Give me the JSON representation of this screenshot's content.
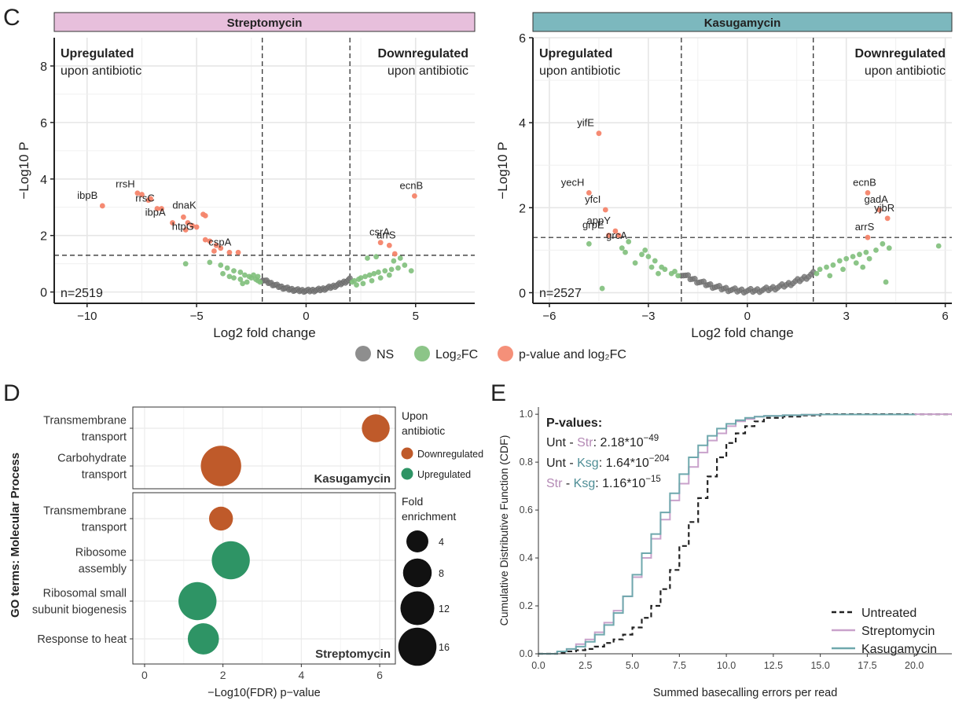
{
  "panel_labels": {
    "c": "C",
    "d": "D",
    "e": "E"
  },
  "colors": {
    "ns": "#7a7a7a",
    "log2fc": "#7fbf7b",
    "sig": "#f4846a",
    "downregulated": "#bf5a2a",
    "upregulated": "#2e9465",
    "streptomycin": "#c9a2cb",
    "kasugamycin": "#6fa8ad",
    "untreated": "#222222",
    "strep_strip": "#e7bfdc",
    "kasu_strip": "#7cb8be"
  },
  "chart_data": [
    {
      "type": "scatter",
      "panel": "C-left",
      "title": "Streptomycin",
      "xlabel": "Log2 fold change",
      "ylabel": "−Log10 P",
      "xlim": [
        -11.5,
        7.7
      ],
      "ylim": [
        -0.4,
        9
      ],
      "xticks": [
        -10,
        -5,
        0,
        5
      ],
      "yticks": [
        0,
        2,
        4,
        6,
        8
      ],
      "vlines": [
        -2,
        2
      ],
      "hline": 1.3,
      "grid": true,
      "annotations": {
        "up_title": "Upregulated",
        "up_sub": "upon antibiotic",
        "down_title": "Downregulated",
        "down_sub": "upon antibiotic",
        "n": "n=2519"
      },
      "labeled_points": [
        {
          "label": "rrsH",
          "x": -7.6,
          "y": 3.45
        },
        {
          "label": "ibpB",
          "x": -9.3,
          "y": 3.05
        },
        {
          "label": "rrsC",
          "x": -6.7,
          "y": 2.95
        },
        {
          "label": "dnaK",
          "x": -4.8,
          "y": 2.7
        },
        {
          "label": "ibpA",
          "x": -6.2,
          "y": 2.45
        },
        {
          "label": "htpG",
          "x": -4.9,
          "y": 1.95
        },
        {
          "label": "cspA",
          "x": -3.2,
          "y": 1.4
        },
        {
          "label": "ecnB",
          "x": 4.95,
          "y": 3.4
        },
        {
          "label": "csrA",
          "x": 3.5,
          "y": 1.75
        },
        {
          "label": "arrS",
          "x": 3.8,
          "y": 1.65
        }
      ],
      "sig_points": [
        [
          -7.7,
          3.5
        ],
        [
          -7.5,
          3.45
        ],
        [
          -7.2,
          3.25
        ],
        [
          -7.1,
          3.3
        ],
        [
          -6.8,
          2.95
        ],
        [
          -6.6,
          2.95
        ],
        [
          -5.6,
          2.65
        ],
        [
          -5.4,
          2.45
        ],
        [
          -5.2,
          2.35
        ],
        [
          -5.0,
          2.3
        ],
        [
          -4.7,
          2.75
        ],
        [
          -4.6,
          2.7
        ],
        [
          -5.5,
          2.2
        ],
        [
          -4.6,
          1.85
        ],
        [
          -4.4,
          1.8
        ],
        [
          -4.1,
          1.65
        ],
        [
          -3.9,
          1.55
        ],
        [
          -4.2,
          1.45
        ],
        [
          -3.5,
          1.4
        ],
        [
          -3.1,
          1.4
        ],
        [
          -6.1,
          2.45
        ],
        [
          -9.3,
          3.05
        ],
        [
          3.4,
          1.75
        ],
        [
          3.8,
          1.65
        ],
        [
          4.05,
          1.35
        ],
        [
          4.95,
          3.4
        ]
      ],
      "fc_points": [
        [
          -5.5,
          1.0
        ],
        [
          -4.4,
          1.05
        ],
        [
          -3.9,
          0.95
        ],
        [
          -3.6,
          0.85
        ],
        [
          -3.3,
          0.75
        ],
        [
          -3.0,
          0.7
        ],
        [
          -2.8,
          0.6
        ],
        [
          -2.6,
          0.55
        ],
        [
          -2.5,
          0.5
        ],
        [
          -2.3,
          0.45
        ],
        [
          -2.2,
          0.4
        ],
        [
          -2.1,
          0.35
        ],
        [
          -3.3,
          0.5
        ],
        [
          -3.0,
          0.45
        ],
        [
          -2.7,
          0.35
        ],
        [
          -3.5,
          0.55
        ],
        [
          -2.4,
          0.6
        ],
        [
          -2.9,
          0.3
        ],
        [
          -3.8,
          0.65
        ],
        [
          -2.2,
          0.55
        ],
        [
          2.1,
          0.35
        ],
        [
          2.2,
          0.4
        ],
        [
          2.4,
          0.45
        ],
        [
          2.5,
          0.5
        ],
        [
          2.7,
          0.55
        ],
        [
          2.9,
          0.6
        ],
        [
          3.1,
          0.65
        ],
        [
          3.3,
          0.7
        ],
        [
          3.6,
          0.75
        ],
        [
          3.9,
          0.8
        ],
        [
          4.2,
          0.85
        ],
        [
          4.5,
          0.95
        ],
        [
          2.6,
          0.3
        ],
        [
          3.0,
          0.4
        ],
        [
          3.4,
          0.5
        ],
        [
          3.8,
          0.6
        ],
        [
          4.0,
          1.1
        ],
        [
          4.3,
          1.2
        ],
        [
          3.2,
          1.25
        ],
        [
          2.8,
          1.2
        ],
        [
          2.3,
          0.25
        ],
        [
          4.8,
          0.75
        ]
      ],
      "ns_points_profile": {
        "x_from": -2,
        "x_to": 2,
        "count": 60
      }
    },
    {
      "type": "scatter",
      "panel": "C-right",
      "title": "Kasugamycin",
      "xlabel": "Log2 fold change",
      "ylabel": "−Log10 P",
      "xlim": [
        -6.5,
        6.2
      ],
      "ylim": [
        -0.25,
        6
      ],
      "xticks": [
        -6,
        -3,
        0,
        3,
        6
      ],
      "yticks": [
        0,
        2,
        4,
        6
      ],
      "vlines": [
        -2,
        2
      ],
      "hline": 1.3,
      "grid": true,
      "annotations": {
        "up_title": "Upregulated",
        "up_sub": "upon antibiotic",
        "down_title": "Downregulated",
        "down_sub": "upon antibiotic",
        "n": "n=2527"
      },
      "labeled_points": [
        {
          "label": "yifE",
          "x": -4.5,
          "y": 3.75
        },
        {
          "label": "yecH",
          "x": -4.8,
          "y": 2.35
        },
        {
          "label": "yfcI",
          "x": -4.3,
          "y": 1.95
        },
        {
          "label": "appY",
          "x": -4.0,
          "y": 1.45
        },
        {
          "label": "grpE",
          "x": -4.2,
          "y": 1.35
        },
        {
          "label": "grcA",
          "x": -3.5,
          "y": 1.1
        },
        {
          "label": "ecnB",
          "x": 3.65,
          "y": 2.35
        },
        {
          "label": "gadA",
          "x": 4.0,
          "y": 1.95
        },
        {
          "label": "yjbR",
          "x": 4.25,
          "y": 1.75
        },
        {
          "label": "arrS",
          "x": 3.65,
          "y": 1.3
        }
      ],
      "sig_points": [
        [
          -4.5,
          3.75
        ],
        [
          -4.8,
          2.35
        ],
        [
          -4.3,
          1.95
        ],
        [
          -4.0,
          1.45
        ],
        [
          -4.2,
          1.35
        ],
        [
          -3.9,
          1.35
        ],
        [
          3.65,
          2.35
        ],
        [
          4.0,
          1.95
        ],
        [
          4.25,
          1.75
        ],
        [
          3.65,
          1.3
        ]
      ],
      "fc_points": [
        [
          -4.8,
          1.15
        ],
        [
          -4.4,
          0.1
        ],
        [
          -3.8,
          1.05
        ],
        [
          -3.6,
          1.2
        ],
        [
          -3.2,
          0.9
        ],
        [
          -3.0,
          0.85
        ],
        [
          -2.8,
          0.75
        ],
        [
          -2.6,
          0.6
        ],
        [
          -2.5,
          0.55
        ],
        [
          -2.3,
          0.45
        ],
        [
          -2.2,
          0.5
        ],
        [
          -3.4,
          0.7
        ],
        [
          -2.9,
          0.6
        ],
        [
          -3.7,
          0.95
        ],
        [
          -2.7,
          0.45
        ],
        [
          -2.1,
          0.4
        ],
        [
          -3.1,
          1.0
        ],
        [
          2.1,
          0.45
        ],
        [
          2.2,
          0.55
        ],
        [
          2.4,
          0.6
        ],
        [
          2.6,
          0.65
        ],
        [
          2.8,
          0.75
        ],
        [
          3.0,
          0.8
        ],
        [
          3.2,
          0.85
        ],
        [
          3.4,
          0.9
        ],
        [
          3.6,
          0.95
        ],
        [
          3.9,
          1.0
        ],
        [
          4.1,
          1.15
        ],
        [
          2.5,
          0.4
        ],
        [
          2.9,
          0.55
        ],
        [
          3.3,
          0.7
        ],
        [
          3.7,
          0.8
        ],
        [
          4.2,
          0.25
        ],
        [
          5.8,
          1.1
        ],
        [
          4.3,
          1.05
        ],
        [
          3.5,
          0.6
        ]
      ],
      "ns_points_profile": {
        "x_from": -2,
        "x_to": 2,
        "count": 60
      }
    },
    {
      "type": "bubble",
      "panel": "D",
      "xlabel": "−Log10(FDR) p−value",
      "ylabel": "GO terms: Molecular Process",
      "xlim": [
        -0.3,
        6.4
      ],
      "xticks": [
        0,
        2,
        4,
        6
      ],
      "facets": [
        {
          "name": "Kasugamycin",
          "terms": [
            {
              "term": [
                "Transmembrane",
                "transport"
              ],
              "x": 5.9,
              "fold": 6,
              "dir": "down"
            },
            {
              "term": [
                "Carbohydrate",
                "transport"
              ],
              "x": 1.95,
              "fold": 15,
              "dir": "down"
            }
          ]
        },
        {
          "name": "Streptomycin",
          "terms": [
            {
              "term": [
                "Transmembrane",
                "transport"
              ],
              "x": 1.95,
              "fold": 4,
              "dir": "down"
            },
            {
              "term": [
                "Ribosome",
                "assembly"
              ],
              "x": 2.2,
              "fold": 13,
              "dir": "up"
            },
            {
              "term": [
                "Ribosomal small",
                "subunit biogenesis"
              ],
              "x": 1.35,
              "fold": 13,
              "dir": "up"
            },
            {
              "term": [
                "Response to heat"
              ],
              "x": 1.5,
              "fold": 8,
              "dir": "up"
            }
          ]
        }
      ],
      "legend": {
        "color_title": [
          "Upon",
          "antibiotic"
        ],
        "color_items": [
          {
            "label": "Downregulated",
            "dir": "down"
          },
          {
            "label": "Upregulated",
            "dir": "up"
          }
        ],
        "size_title": [
          "Fold",
          "enrichment"
        ],
        "size_items": [
          {
            "label": "4",
            "fold": 4
          },
          {
            "label": "8",
            "fold": 8
          },
          {
            "label": "12",
            "fold": 12
          },
          {
            "label": "16",
            "fold": 16
          }
        ]
      }
    },
    {
      "type": "line",
      "panel": "E",
      "xlabel": "Summed basecalling errors per read",
      "ylabel": "Cumulative Distributive Function (CDF)",
      "xlim": [
        0,
        22
      ],
      "ylim": [
        0,
        1.03
      ],
      "xticks": [
        0,
        2.5,
        5,
        7.5,
        10,
        12.5,
        15,
        17.5,
        20
      ],
      "xtick_labels": [
        "0.0",
        "2.5",
        "5.0",
        "7.5",
        "10.0",
        "12.5",
        "15.0",
        "17.5",
        "20.0"
      ],
      "yticks": [
        0,
        0.2,
        0.4,
        0.6,
        0.8,
        1.0
      ],
      "ytick_labels": [
        "0.0",
        "0.2",
        "0.4",
        "0.6",
        "0.8",
        "1.0"
      ],
      "pvalues": {
        "title": "P-values:",
        "rows": [
          {
            "a": "Unt",
            "b": "Str",
            "value": "2.18*10",
            "exp": "−49"
          },
          {
            "a": "Unt",
            "b": "Ksg",
            "value": "1.64*10",
            "exp": "−204"
          },
          {
            "a": "Str",
            "b": "Ksg",
            "value": "1.16*10",
            "exp": "−15"
          }
        ]
      },
      "series": [
        {
          "name": "Untreated",
          "x": [
            0,
            1,
            1.5,
            2,
            2.5,
            3,
            3.5,
            4,
            4.5,
            5,
            5.5,
            6,
            6.5,
            7,
            7.5,
            8,
            8.5,
            9,
            9.5,
            10,
            10.5,
            11,
            11.5,
            12,
            13,
            14,
            15,
            22
          ],
          "y": [
            0,
            0.005,
            0.01,
            0.015,
            0.02,
            0.03,
            0.045,
            0.06,
            0.08,
            0.11,
            0.15,
            0.2,
            0.27,
            0.35,
            0.45,
            0.55,
            0.65,
            0.74,
            0.82,
            0.88,
            0.92,
            0.95,
            0.97,
            0.985,
            0.99,
            0.995,
            1,
            1
          ]
        },
        {
          "name": "Streptomycin",
          "x": [
            0,
            1,
            1.5,
            2,
            2.5,
            3,
            3.5,
            4,
            4.5,
            5,
            5.5,
            6,
            6.5,
            7,
            7.5,
            8,
            8.5,
            9,
            9.5,
            10,
            10.5,
            11,
            11.5,
            12,
            13,
            14,
            15,
            20,
            22
          ],
          "y": [
            0,
            0.01,
            0.02,
            0.04,
            0.06,
            0.09,
            0.13,
            0.18,
            0.24,
            0.32,
            0.4,
            0.48,
            0.56,
            0.64,
            0.71,
            0.78,
            0.84,
            0.89,
            0.92,
            0.95,
            0.97,
            0.98,
            0.99,
            0.993,
            0.996,
            0.998,
            0.999,
            1,
            1
          ]
        },
        {
          "name": "Kasugamycin",
          "x": [
            0,
            1,
            1.5,
            2,
            2.5,
            3,
            3.5,
            4,
            4.5,
            5,
            5.5,
            6,
            6.5,
            7,
            7.5,
            8,
            8.5,
            9,
            9.5,
            10,
            10.5,
            11,
            11.5,
            12,
            13,
            14,
            15,
            20
          ],
          "y": [
            0,
            0.01,
            0.02,
            0.03,
            0.05,
            0.08,
            0.12,
            0.17,
            0.24,
            0.33,
            0.42,
            0.5,
            0.59,
            0.67,
            0.75,
            0.82,
            0.87,
            0.91,
            0.94,
            0.96,
            0.975,
            0.985,
            0.99,
            0.993,
            0.996,
            0.998,
            0.999,
            1
          ]
        }
      ]
    }
  ],
  "volcano_legend": [
    {
      "label": "NS",
      "key": "ns"
    },
    {
      "label": "Log₂FC",
      "key": "log2fc"
    },
    {
      "label": "p-value and log₂FC",
      "key": "sig"
    }
  ]
}
